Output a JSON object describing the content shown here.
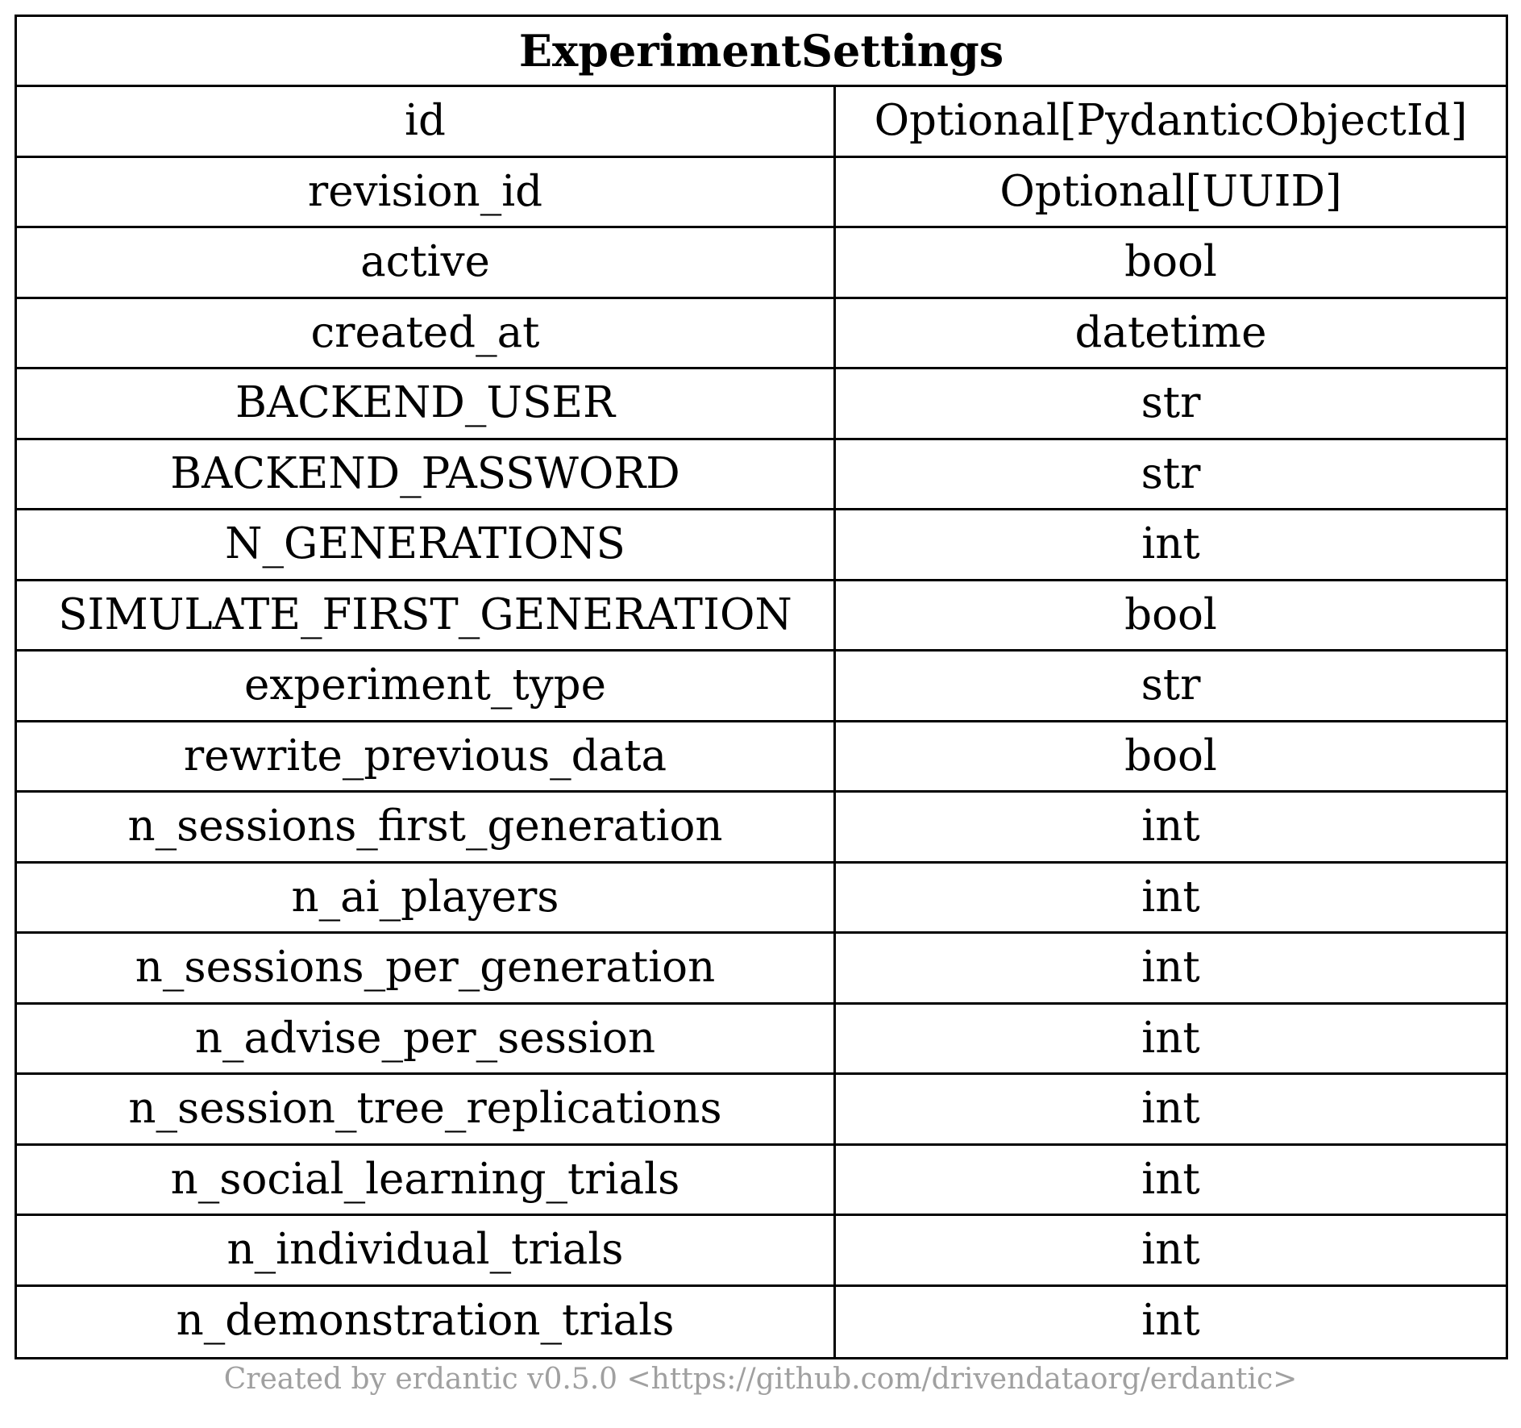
{
  "entity": {
    "title": "ExperimentSettings",
    "fields": [
      {
        "name": "id",
        "type": "Optional[PydanticObjectId]"
      },
      {
        "name": "revision_id",
        "type": "Optional[UUID]"
      },
      {
        "name": "active",
        "type": "bool"
      },
      {
        "name": "created_at",
        "type": "datetime"
      },
      {
        "name": "BACKEND_USER",
        "type": "str"
      },
      {
        "name": "BACKEND_PASSWORD",
        "type": "str"
      },
      {
        "name": "N_GENERATIONS",
        "type": "int"
      },
      {
        "name": "SIMULATE_FIRST_GENERATION",
        "type": "bool"
      },
      {
        "name": "experiment_type",
        "type": "str"
      },
      {
        "name": "rewrite_previous_data",
        "type": "bool"
      },
      {
        "name": "n_sessions_first_generation",
        "type": "int"
      },
      {
        "name": "n_ai_players",
        "type": "int"
      },
      {
        "name": "n_sessions_per_generation",
        "type": "int"
      },
      {
        "name": "n_advise_per_session",
        "type": "int"
      },
      {
        "name": "n_session_tree_replications",
        "type": "int"
      },
      {
        "name": "n_social_learning_trials",
        "type": "int"
      },
      {
        "name": "n_individual_trials",
        "type": "int"
      },
      {
        "name": "n_demonstration_trials",
        "type": "int"
      }
    ]
  },
  "footer": {
    "text": "Created by erdantic v0.5.0 <https://github.com/drivendataorg/erdantic>"
  },
  "colors": {
    "border": "#000000",
    "text": "#000000",
    "footer": "#a0a0a0",
    "background": "#ffffff"
  }
}
